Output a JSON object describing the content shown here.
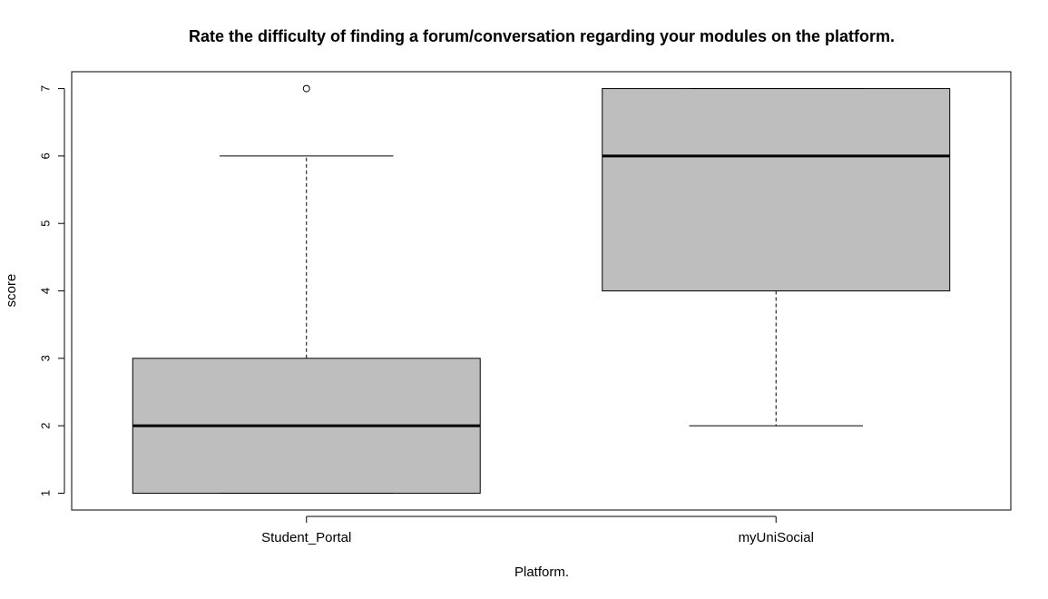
{
  "chart_data": {
    "type": "boxplot",
    "title": "Rate the difficulty of finding a forum/conversation regarding your modules on the platform.",
    "xlabel": "Platform.",
    "ylabel": "score",
    "ylim": [
      0.75,
      7.25
    ],
    "yticks": [
      1,
      2,
      3,
      4,
      5,
      6,
      7
    ],
    "categories": [
      "Student_Portal",
      "myUniSocial"
    ],
    "boxes": [
      {
        "category": "Student_Portal",
        "whisker_low": 1,
        "q1": 1,
        "median": 2,
        "q3": 3,
        "whisker_high": 6,
        "outliers": [
          7
        ]
      },
      {
        "category": "myUniSocial",
        "whisker_low": 2,
        "q1": 4,
        "median": 6,
        "q3": 7,
        "whisker_high": 7,
        "outliers": []
      }
    ],
    "colors": {
      "box_fill": "#bebebe",
      "stroke": "#000000"
    },
    "grid": false,
    "legend": "none"
  }
}
